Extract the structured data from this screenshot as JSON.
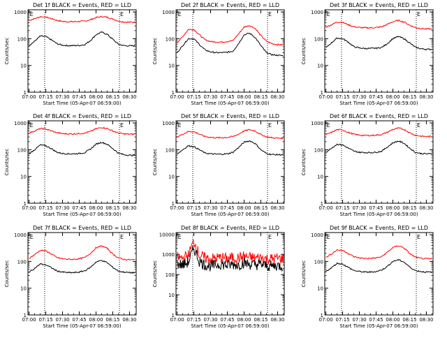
{
  "chart_data": [
    {
      "type": "line",
      "title": "Det 1f BLACK = Events, RED = LLD",
      "xlabel": "Start Time (05-Apr-07 06:59:00)",
      "ylabel": "Counts/sec",
      "x_ticks": [
        "07:00",
        "07:15",
        "07:30",
        "07:45",
        "08:00",
        "08:15",
        "08:30"
      ],
      "y_ticks": [
        "1",
        "10",
        "100",
        "1000"
      ],
      "ylim": [
        1,
        1200
      ],
      "yscale": "log",
      "markers": [
        "E",
        "E"
      ],
      "series": [
        {
          "color": "#ff0000",
          "x": [
            0,
            5,
            10,
            15,
            20,
            25,
            30,
            35,
            40,
            45,
            50,
            55,
            60,
            65,
            70,
            75,
            80,
            85,
            90,
            95
          ],
          "values": [
            480,
            560,
            660,
            640,
            560,
            480,
            440,
            430,
            430,
            440,
            450,
            510,
            610,
            670,
            630,
            540,
            460,
            420,
            410,
            410
          ]
        },
        {
          "color": "#000000",
          "x": [
            0,
            5,
            10,
            15,
            20,
            25,
            30,
            35,
            40,
            45,
            50,
            55,
            60,
            65,
            70,
            75,
            80,
            85,
            90,
            95
          ],
          "values": [
            55,
            80,
            125,
            120,
            90,
            65,
            57,
            55,
            55,
            56,
            60,
            85,
            140,
            175,
            145,
            95,
            62,
            55,
            54,
            54
          ]
        }
      ]
    },
    {
      "type": "line",
      "title": "Det 2f BLACK = Events, RED = LLD",
      "xlabel": "Start Time (05-Apr-07 06:59:00)",
      "ylabel": "Counts/sec",
      "x_ticks": [
        "07:00",
        "07:15",
        "07:30",
        "07:45",
        "08:00",
        "08:15",
        "08:30"
      ],
      "y_ticks": [
        "1",
        "10",
        "100",
        "1000"
      ],
      "ylim": [
        1,
        1200
      ],
      "yscale": "log",
      "markers": [
        "E",
        "E"
      ],
      "series": [
        {
          "color": "#ff0000",
          "x": [
            0,
            5,
            10,
            15,
            20,
            25,
            30,
            35,
            40,
            45,
            50,
            55,
            60,
            65,
            70,
            75,
            80,
            85,
            90,
            95
          ],
          "values": [
            70,
            120,
            220,
            220,
            140,
            90,
            78,
            75,
            75,
            78,
            85,
            150,
            270,
            310,
            240,
            130,
            80,
            65,
            60,
            58
          ]
        },
        {
          "color": "#000000",
          "x": [
            0,
            5,
            10,
            15,
            20,
            25,
            30,
            35,
            40,
            45,
            50,
            55,
            60,
            65,
            70,
            75,
            80,
            85,
            90,
            95
          ],
          "values": [
            30,
            55,
            100,
            100,
            60,
            38,
            32,
            30,
            30,
            31,
            34,
            65,
            140,
            160,
            110,
            55,
            30,
            25,
            24,
            23
          ]
        }
      ]
    },
    {
      "type": "line",
      "title": "Det 3f BLACK = Events, RED = LLD",
      "xlabel": "Start Time (05-Apr-07 06:59:00)",
      "ylabel": "Counts/sec",
      "x_ticks": [
        "07:00",
        "07:15",
        "07:30",
        "07:45",
        "08:00",
        "08:15",
        "08:30"
      ],
      "y_ticks": [
        "1",
        "10",
        "100",
        "1000"
      ],
      "ylim": [
        1,
        1200
      ],
      "yscale": "log",
      "markers": [
        "E",
        "E"
      ],
      "series": [
        {
          "color": "#ff0000",
          "x": [
            0,
            5,
            10,
            15,
            20,
            25,
            30,
            35,
            40,
            45,
            50,
            55,
            60,
            65,
            70,
            75,
            80,
            85,
            90,
            95
          ],
          "values": [
            270,
            330,
            420,
            410,
            330,
            280,
            260,
            255,
            255,
            260,
            275,
            340,
            430,
            480,
            420,
            320,
            260,
            240,
            230,
            230
          ]
        },
        {
          "color": "#000000",
          "x": [
            0,
            5,
            10,
            15,
            20,
            25,
            30,
            35,
            40,
            45,
            50,
            55,
            60,
            65,
            70,
            75,
            80,
            85,
            90,
            95
          ],
          "values": [
            45,
            70,
            105,
            100,
            75,
            50,
            45,
            43,
            43,
            44,
            47,
            65,
            100,
            120,
            100,
            70,
            48,
            42,
            40,
            40
          ]
        }
      ]
    },
    {
      "type": "line",
      "title": "Det 4f BLACK = Events, RED = LLD",
      "xlabel": "Start Time (05-Apr-07 06:59:00)",
      "ylabel": "Counts/sec",
      "x_ticks": [
        "07:00",
        "07:15",
        "07:30",
        "07:45",
        "08:00",
        "08:15",
        "08:30"
      ],
      "y_ticks": [
        "1",
        "10",
        "100",
        "1000"
      ],
      "ylim": [
        1,
        1200
      ],
      "yscale": "log",
      "markers": [
        "E",
        "E"
      ],
      "series": [
        {
          "color": "#ff0000",
          "x": [
            0,
            5,
            10,
            15,
            20,
            25,
            30,
            35,
            40,
            45,
            50,
            55,
            60,
            65,
            70,
            75,
            80,
            85,
            90,
            95
          ],
          "values": [
            420,
            500,
            610,
            600,
            500,
            430,
            400,
            390,
            390,
            400,
            420,
            480,
            600,
            680,
            620,
            500,
            420,
            390,
            380,
            380
          ]
        },
        {
          "color": "#000000",
          "x": [
            0,
            5,
            10,
            15,
            20,
            25,
            30,
            35,
            40,
            45,
            50,
            55,
            60,
            65,
            70,
            75,
            80,
            85,
            90,
            95
          ],
          "values": [
            70,
            100,
            150,
            140,
            110,
            80,
            72,
            70,
            70,
            72,
            78,
            105,
            160,
            190,
            160,
            110,
            75,
            65,
            62,
            62
          ]
        }
      ]
    },
    {
      "type": "line",
      "title": "Det 5f BLACK = Events, RED = LLD",
      "xlabel": "Start Time (05-Apr-07 06:59:00)",
      "ylabel": "Counts/sec",
      "x_ticks": [
        "07:00",
        "07:15",
        "07:30",
        "07:45",
        "08:00",
        "08:15",
        "08:30"
      ],
      "y_ticks": [
        "1",
        "10",
        "100",
        "1000"
      ],
      "ylim": [
        1,
        1200
      ],
      "yscale": "log",
      "markers": [
        "E",
        "E"
      ],
      "series": [
        {
          "color": "#ff0000",
          "x": [
            0,
            5,
            10,
            15,
            20,
            25,
            30,
            35,
            40,
            45,
            50,
            55,
            60,
            65,
            70,
            75,
            80,
            85,
            90,
            95
          ],
          "values": [
            300,
            380,
            480,
            470,
            380,
            310,
            290,
            280,
            280,
            290,
            310,
            380,
            500,
            560,
            500,
            370,
            300,
            280,
            270,
            270
          ]
        },
        {
          "color": "#000000",
          "x": [
            0,
            5,
            10,
            15,
            20,
            25,
            30,
            35,
            40,
            45,
            50,
            55,
            60,
            65,
            70,
            75,
            80,
            85,
            90,
            95
          ],
          "values": [
            70,
            100,
            140,
            130,
            100,
            75,
            70,
            68,
            68,
            70,
            80,
            120,
            190,
            215,
            170,
            100,
            72,
            66,
            65,
            65
          ]
        }
      ]
    },
    {
      "type": "line",
      "title": "Det 6f BLACK = Events, RED = LLD",
      "xlabel": "Start Time (05-Apr-07 06:59:00)",
      "ylabel": "Counts/sec",
      "x_ticks": [
        "07:00",
        "07:15",
        "07:30",
        "07:45",
        "08:00",
        "08:15",
        "08:30"
      ],
      "y_ticks": [
        "1",
        "10",
        "100",
        "1000"
      ],
      "ylim": [
        1,
        1200
      ],
      "yscale": "log",
      "markers": [
        "E",
        "E"
      ],
      "series": [
        {
          "color": "#ff0000",
          "x": [
            0,
            5,
            10,
            15,
            20,
            25,
            30,
            35,
            40,
            45,
            50,
            55,
            60,
            65,
            70,
            75,
            80,
            85,
            90,
            95
          ],
          "values": [
            360,
            440,
            560,
            550,
            440,
            380,
            350,
            340,
            340,
            350,
            370,
            450,
            570,
            640,
            570,
            430,
            350,
            320,
            310,
            310
          ]
        },
        {
          "color": "#000000",
          "x": [
            0,
            5,
            10,
            15,
            20,
            25,
            30,
            35,
            40,
            45,
            50,
            55,
            60,
            65,
            70,
            75,
            80,
            85,
            90,
            95
          ],
          "values": [
            80,
            115,
            160,
            150,
            115,
            88,
            80,
            78,
            78,
            80,
            88,
            125,
            180,
            210,
            175,
            115,
            80,
            72,
            70,
            70
          ]
        }
      ]
    },
    {
      "type": "line",
      "title": "Det 7f BLACK = Events, RED = LLD",
      "xlabel": "Start Time (05-Apr-07 06:59:00)",
      "ylabel": "Counts/sec",
      "x_ticks": [
        "07:00",
        "07:15",
        "07:30",
        "07:45",
        "08:00",
        "08:15",
        "08:30"
      ],
      "y_ticks": [
        "1",
        "10",
        "100",
        "1000"
      ],
      "ylim": [
        1,
        1200
      ],
      "yscale": "log",
      "markers": [
        "E",
        "E"
      ],
      "series": [
        {
          "color": "#ff0000",
          "x": [
            0,
            5,
            10,
            15,
            20,
            25,
            30,
            35,
            40,
            45,
            50,
            55,
            60,
            65,
            70,
            75,
            80,
            85,
            90,
            95
          ],
          "values": [
            130,
            180,
            260,
            250,
            190,
            140,
            125,
            120,
            120,
            125,
            140,
            200,
            320,
            380,
            310,
            190,
            135,
            120,
            115,
            115
          ]
        },
        {
          "color": "#000000",
          "x": [
            0,
            5,
            10,
            15,
            20,
            25,
            30,
            35,
            40,
            45,
            50,
            55,
            60,
            65,
            70,
            75,
            80,
            85,
            90,
            95
          ],
          "values": [
            40,
            55,
            80,
            75,
            58,
            44,
            40,
            38,
            38,
            40,
            45,
            60,
            95,
            110,
            90,
            60,
            44,
            40,
            38,
            38
          ]
        }
      ]
    },
    {
      "type": "line",
      "title": "Det 8f BLACK = Events, RED = LLD",
      "xlabel": "Start Time (05-Apr-07 06:59:00)",
      "ylabel": "Counts/sec",
      "x_ticks": [
        "07:00",
        "07:15",
        "07:30",
        "07:45",
        "08:00",
        "08:15",
        "08:30"
      ],
      "y_ticks": [
        "1",
        "10",
        "100",
        "1000",
        "10000"
      ],
      "ylim": [
        1,
        12000
      ],
      "yscale": "log",
      "markers": [
        "E",
        "E"
      ],
      "series": [
        {
          "color": "#ff0000",
          "x": [
            0,
            5,
            10,
            15,
            20,
            25,
            30,
            35,
            40,
            45,
            50,
            55,
            60,
            65,
            70,
            75,
            80,
            85,
            90,
            95
          ],
          "values": [
            700,
            650,
            900,
            4500,
            900,
            650,
            600,
            650,
            700,
            600,
            700,
            650,
            800,
            700,
            650,
            700,
            600,
            600,
            650,
            600
          ]
        },
        {
          "color": "#000000",
          "x": [
            0,
            5,
            10,
            15,
            20,
            25,
            30,
            35,
            40,
            45,
            50,
            55,
            60,
            65,
            70,
            75,
            80,
            85,
            90,
            95
          ],
          "values": [
            350,
            300,
            400,
            2000,
            450,
            300,
            260,
            300,
            330,
            280,
            320,
            300,
            380,
            320,
            300,
            320,
            270,
            260,
            280,
            260
          ]
        }
      ]
    },
    {
      "type": "line",
      "title": "Det 9f BLACK = Events, RED = LLD",
      "xlabel": "Start Time (05-Apr-07 06:59:00)",
      "ylabel": "Counts/sec",
      "x_ticks": [
        "07:00",
        "07:15",
        "07:30",
        "07:45",
        "08:00",
        "08:15",
        "08:30"
      ],
      "y_ticks": [
        "1",
        "10",
        "100",
        "1000"
      ],
      "ylim": [
        1,
        1200
      ],
      "yscale": "log",
      "markers": [
        "E",
        "E"
      ],
      "series": [
        {
          "color": "#ff0000",
          "x": [
            0,
            5,
            10,
            15,
            20,
            25,
            30,
            35,
            40,
            45,
            50,
            55,
            60,
            65,
            70,
            75,
            80,
            85,
            90,
            95
          ],
          "values": [
            140,
            190,
            270,
            260,
            200,
            150,
            135,
            130,
            130,
            135,
            150,
            220,
            330,
            390,
            320,
            200,
            145,
            130,
            125,
            125
          ]
        },
        {
          "color": "#000000",
          "x": [
            0,
            5,
            10,
            15,
            20,
            25,
            30,
            35,
            40,
            45,
            50,
            55,
            60,
            65,
            70,
            75,
            80,
            85,
            90,
            95
          ],
          "values": [
            42,
            58,
            85,
            80,
            60,
            46,
            42,
            40,
            40,
            42,
            48,
            65,
            100,
            115,
            95,
            62,
            46,
            42,
            40,
            40
          ]
        }
      ]
    }
  ]
}
